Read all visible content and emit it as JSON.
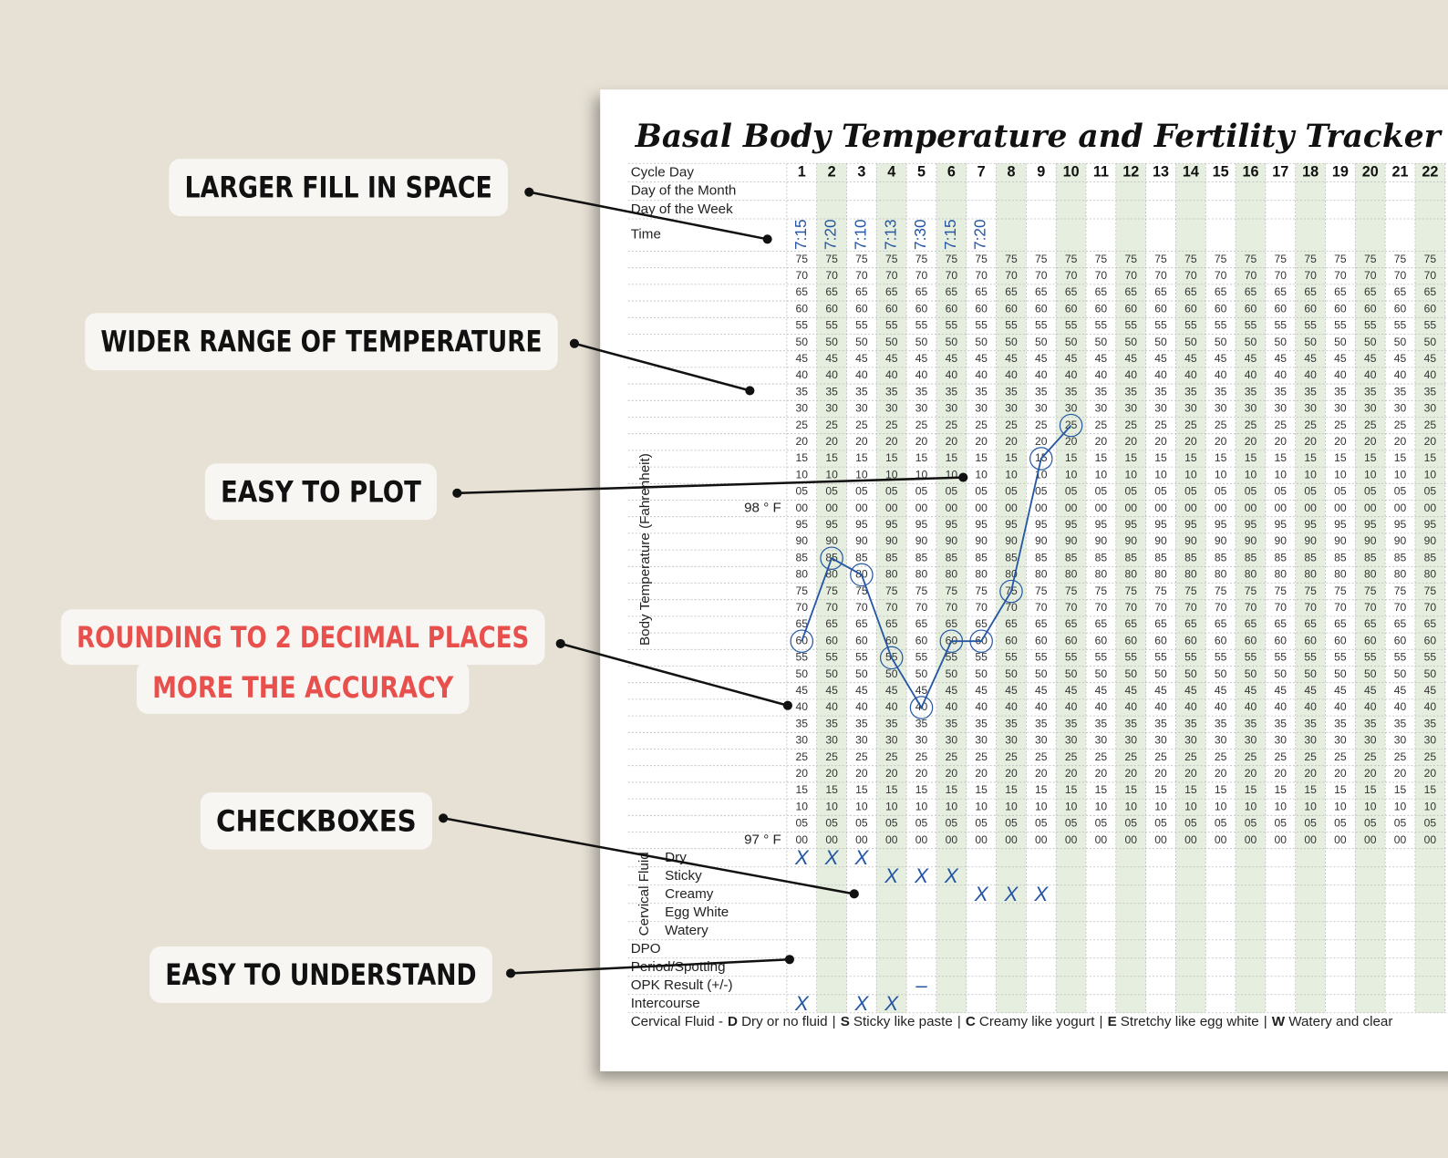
{
  "callouts": [
    {
      "lines": [
        "LARGER FILL IN SPACE"
      ],
      "color": "#111111"
    },
    {
      "lines": [
        "WIDER RANGE OF TEMPERATURE"
      ],
      "color": "#111111"
    },
    {
      "lines": [
        "EASY TO PLOT"
      ],
      "color": "#111111"
    },
    {
      "lines": [
        "ROUNDING TO 2 DECIMAL PLACES",
        "MORE THE ACCURACY"
      ],
      "color": "#e8504d"
    },
    {
      "lines": [
        "CHECKBOXES"
      ],
      "color": "#111111"
    },
    {
      "lines": [
        "EASY TO UNDERSTAND"
      ],
      "color": "#111111"
    }
  ],
  "tracker": {
    "title": "Basal Body Temperature and Fertility Tracker",
    "row_labels": [
      "Cycle Day",
      "Day of the Month",
      "Day of the Week",
      "Time"
    ],
    "cycle_days": [
      1,
      2,
      3,
      4,
      5,
      6,
      7,
      8,
      9,
      10,
      11,
      12,
      13,
      14,
      15,
      16,
      17,
      18,
      19,
      20,
      21,
      22
    ],
    "times": [
      "7:15",
      "7:20",
      "7:10",
      "7:13",
      "7:30",
      "7:15",
      "7:20",
      null,
      null,
      null,
      null,
      null,
      null,
      null,
      null,
      null,
      null,
      null,
      null,
      null,
      null,
      null
    ],
    "axis_label": "Body Temperature (Fahrenheit)",
    "ylim": [
      97,
      98.75
    ],
    "temp_rows": [
      {
        "degree": "98 ° F",
        "labels": [
          "75",
          "70",
          "65",
          "60",
          "55",
          "50",
          "45",
          "40",
          "35",
          "30",
          "25",
          "20",
          "15",
          "10",
          "05",
          "00"
        ]
      },
      {
        "degree": "97 ° F",
        "labels": [
          "95",
          "90",
          "85",
          "80",
          "75",
          "70",
          "65",
          "60",
          "55",
          "50",
          "45",
          "40",
          "35",
          "30",
          "25",
          "20",
          "15",
          "10",
          "05",
          "00"
        ]
      }
    ],
    "temperatures": [
      97.6,
      97.85,
      97.8,
      97.55,
      97.4,
      97.6,
      97.6,
      97.75,
      98.15,
      98.25,
      null,
      null,
      null,
      null,
      null,
      null,
      null,
      null,
      null,
      null,
      null,
      null
    ],
    "fluid_label": "Cervical Fluid",
    "fluid_rows": [
      {
        "label": "Dry",
        "cells": [
          "X",
          "X",
          "X",
          null,
          null,
          null,
          null,
          null,
          null,
          null,
          null,
          null,
          null,
          null,
          null,
          null,
          null,
          null,
          null,
          null,
          null,
          null
        ]
      },
      {
        "label": "Sticky",
        "cells": [
          null,
          null,
          null,
          "X",
          "X",
          "X",
          null,
          null,
          null,
          null,
          null,
          null,
          null,
          null,
          null,
          null,
          null,
          null,
          null,
          null,
          null,
          null
        ]
      },
      {
        "label": "Creamy",
        "cells": [
          null,
          null,
          null,
          null,
          null,
          null,
          "X",
          "X",
          "X",
          null,
          null,
          null,
          null,
          null,
          null,
          null,
          null,
          null,
          null,
          null,
          null,
          null
        ]
      },
      {
        "label": "Egg White",
        "cells": [
          null,
          null,
          null,
          null,
          null,
          null,
          null,
          null,
          null,
          null,
          null,
          null,
          null,
          null,
          null,
          null,
          null,
          null,
          null,
          null,
          null,
          null
        ]
      },
      {
        "label": "Watery",
        "cells": [
          null,
          null,
          null,
          null,
          null,
          null,
          null,
          null,
          null,
          null,
          null,
          null,
          null,
          null,
          null,
          null,
          null,
          null,
          null,
          null,
          null,
          null
        ]
      }
    ],
    "other_rows": [
      {
        "label": "DPO",
        "cells": [
          null,
          null,
          null,
          null,
          null,
          null,
          null,
          null,
          null,
          null,
          null,
          null,
          null,
          null,
          null,
          null,
          null,
          null,
          null,
          null,
          null,
          null
        ]
      },
      {
        "label": "Period/Spotting",
        "cells": [
          null,
          null,
          null,
          null,
          null,
          null,
          null,
          null,
          null,
          null,
          null,
          null,
          null,
          null,
          null,
          null,
          null,
          null,
          null,
          null,
          null,
          null
        ]
      },
      {
        "label": "OPK Result (+/-)",
        "cells": [
          null,
          null,
          null,
          null,
          "–",
          null,
          null,
          null,
          null,
          null,
          null,
          null,
          null,
          null,
          null,
          null,
          null,
          null,
          null,
          null,
          null,
          null
        ]
      },
      {
        "label": "Intercourse",
        "cells": [
          "X",
          null,
          "X",
          "X",
          null,
          null,
          null,
          null,
          null,
          null,
          null,
          null,
          null,
          null,
          null,
          null,
          null,
          null,
          null,
          null,
          null,
          null
        ]
      }
    ],
    "footer": {
      "prefix": "Cervical Fluid -",
      "separator": "|",
      "items": [
        {
          "key": "D",
          "text": "Dry or no fluid"
        },
        {
          "key": "S",
          "text": "Sticky like paste"
        },
        {
          "key": "C",
          "text": "Creamy like yogurt"
        },
        {
          "key": "E",
          "text": "Stretchy like egg white"
        },
        {
          "key": "W",
          "text": "Watery and clear"
        }
      ]
    }
  }
}
